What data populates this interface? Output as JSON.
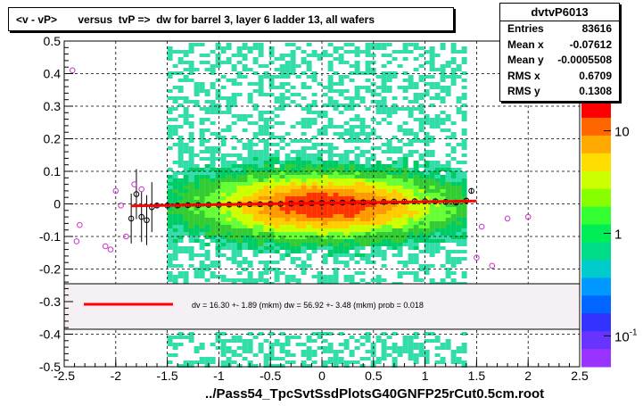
{
  "title": "<v - vP>       versus  tvP =>  dw for barrel 3, layer 6 ladder 13, all wafers",
  "stats": {
    "name": "dvtvP6013",
    "rows": [
      {
        "label": "Entries",
        "value": "83616"
      },
      {
        "label": "Mean x",
        "value": "-0.07612"
      },
      {
        "label": "Mean y",
        "value": "-0.0005508"
      },
      {
        "label": "RMS x",
        "value": "0.6709"
      },
      {
        "label": "RMS y",
        "value": "0.1308"
      }
    ]
  },
  "x_axis_title": "../Pass54_TpcSvtSsdPlotsG40GNFP25rCut0.5cm.root",
  "fit_legend": "dv =    16.30 +-  1.89 (mkm) dw =    56.92 +-  3.48 (mkm) prob = 0.018",
  "colors": {
    "fit_line": "#ff0000",
    "markers": "#cc33cc",
    "profile": "#000000"
  },
  "chart_data": {
    "type": "heatmap",
    "xlim": [
      -2.5,
      2.5
    ],
    "ylim": [
      -0.5,
      0.5
    ],
    "x_ticks": [
      -2.5,
      -2,
      -1.5,
      -1,
      -0.5,
      0,
      0.5,
      1,
      1.5,
      2,
      2.5
    ],
    "y_ticks": [
      -0.5,
      -0.4,
      -0.3,
      -0.2,
      -0.1,
      0,
      0.1,
      0.2,
      0.3,
      0.4,
      0.5
    ],
    "x_tick_labels": [
      "-2.5",
      "-2",
      "-1.5",
      "-1",
      "-0.5",
      "0",
      "0.5",
      "1",
      "1.5",
      "2",
      "2.5"
    ],
    "y_tick_labels": [
      "-0.5",
      "-0.4",
      "-0.3",
      "-0.2",
      "-0.1",
      "0",
      "0.1",
      "0.2",
      "0.3",
      "0.4",
      "0.5"
    ],
    "grid": true,
    "colorbar": {
      "scale": "log",
      "tick_labels": [
        "10",
        "1",
        "10-1"
      ],
      "positions": [
        10,
        1,
        0.1
      ]
    },
    "fit_line": {
      "x": [
        -1.85,
        1.5
      ],
      "y": [
        -0.006,
        0.009
      ]
    },
    "profile_points": [
      {
        "x": -1.85,
        "y": -0.045
      },
      {
        "x": -1.8,
        "y": 0.03
      },
      {
        "x": -1.75,
        "y": -0.04
      },
      {
        "x": -1.7,
        "y": -0.05
      },
      {
        "x": -1.65,
        "y": -0.01
      },
      {
        "x": -1.6,
        "y": -0.005
      },
      {
        "x": -1.5,
        "y": -0.005
      },
      {
        "x": -1.4,
        "y": -0.005
      },
      {
        "x": -1.3,
        "y": -0.004
      },
      {
        "x": -1.2,
        "y": -0.004
      },
      {
        "x": -1.1,
        "y": -0.003
      },
      {
        "x": -1.0,
        "y": -0.003
      },
      {
        "x": -0.9,
        "y": -0.002
      },
      {
        "x": -0.8,
        "y": -0.002
      },
      {
        "x": -0.7,
        "y": -0.001
      },
      {
        "x": -0.6,
        "y": -0.001
      },
      {
        "x": -0.5,
        "y": 0.0
      },
      {
        "x": -0.4,
        "y": 0.0
      },
      {
        "x": -0.3,
        "y": 0.001
      },
      {
        "x": -0.2,
        "y": 0.002
      },
      {
        "x": -0.1,
        "y": 0.002
      },
      {
        "x": 0.0,
        "y": 0.003
      },
      {
        "x": 0.1,
        "y": 0.004
      },
      {
        "x": 0.2,
        "y": 0.004
      },
      {
        "x": 0.3,
        "y": 0.005
      },
      {
        "x": 0.4,
        "y": 0.005
      },
      {
        "x": 0.5,
        "y": 0.006
      },
      {
        "x": 0.6,
        "y": 0.006
      },
      {
        "x": 0.7,
        "y": 0.007
      },
      {
        "x": 0.8,
        "y": 0.007
      },
      {
        "x": 0.9,
        "y": 0.008
      },
      {
        "x": 1.0,
        "y": 0.008
      },
      {
        "x": 1.1,
        "y": 0.008
      },
      {
        "x": 1.2,
        "y": 0.006
      },
      {
        "x": 1.3,
        "y": 0.004
      },
      {
        "x": 1.4,
        "y": 0.01
      },
      {
        "x": 1.45,
        "y": 0.04
      }
    ],
    "outlier_points": [
      {
        "x": -2.42,
        "y": 0.41
      },
      {
        "x": -2.35,
        "y": -0.065
      },
      {
        "x": -2.38,
        "y": -0.115
      },
      {
        "x": -2.1,
        "y": -0.13
      },
      {
        "x": -2.05,
        "y": -0.14
      },
      {
        "x": -2.0,
        "y": 0.04
      },
      {
        "x": -1.95,
        "y": -0.005
      },
      {
        "x": -1.9,
        "y": -0.1
      },
      {
        "x": -1.82,
        "y": 0.06
      },
      {
        "x": -1.75,
        "y": 0.045
      },
      {
        "x": 1.55,
        "y": -0.07
      },
      {
        "x": 1.5,
        "y": -0.165
      },
      {
        "x": 1.65,
        "y": -0.19
      },
      {
        "x": 1.8,
        "y": -0.045
      },
      {
        "x": 2.0,
        "y": -0.04
      }
    ]
  }
}
